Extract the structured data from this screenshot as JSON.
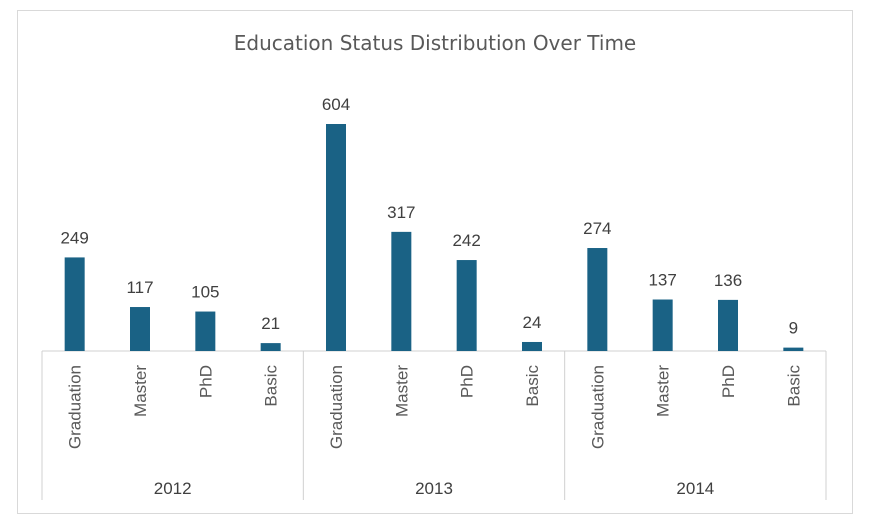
{
  "chart_data": {
    "type": "bar",
    "title": "Education Status Distribution Over Time",
    "groups": [
      "2012",
      "2013",
      "2014"
    ],
    "categories": [
      "Graduation",
      "Master",
      "PhD",
      "Basic"
    ],
    "series": [
      {
        "group": "2012",
        "values": [
          249,
          117,
          105,
          21
        ]
      },
      {
        "group": "2013",
        "values": [
          604,
          317,
          242,
          24
        ]
      },
      {
        "group": "2014",
        "values": [
          274,
          137,
          136,
          9
        ]
      }
    ],
    "ylim": [
      0,
      604
    ],
    "grid": false,
    "legend": "none",
    "colors": {
      "bar": "#1a6285"
    }
  }
}
